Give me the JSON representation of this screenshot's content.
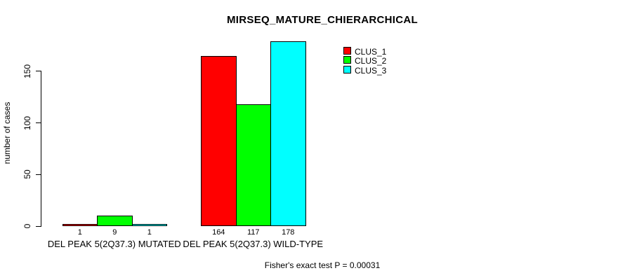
{
  "chart_data": {
    "type": "bar",
    "title": "MIRSEQ_MATURE_CHIERARCHICAL",
    "ylabel": "number of cases",
    "xlabel": "",
    "categories": [
      "DEL PEAK 5(2Q37.3) MUTATED",
      "DEL PEAK 5(2Q37.3) WILD-TYPE"
    ],
    "series": [
      {
        "name": "CLUS_1",
        "color": "#FF0000",
        "values": [
          1,
          164
        ]
      },
      {
        "name": "CLUS_2",
        "color": "#00FF00",
        "values": [
          9,
          117
        ]
      },
      {
        "name": "CLUS_3",
        "color": "#00FFFF",
        "values": [
          1,
          178
        ]
      }
    ],
    "bar_value_labels": [
      [
        "1",
        "9",
        "1"
      ],
      [
        "164",
        "117",
        "178"
      ]
    ],
    "yticks": [
      0,
      50,
      100,
      150
    ],
    "ylim": [
      0,
      185
    ],
    "grid": false,
    "legend_position": "top-right",
    "legend_box": false,
    "annotation": "Fisher's exact test P = 0.00031",
    "background_color": "#FFFFFF",
    "axis_color": "#000000",
    "text_color": "#000000"
  }
}
